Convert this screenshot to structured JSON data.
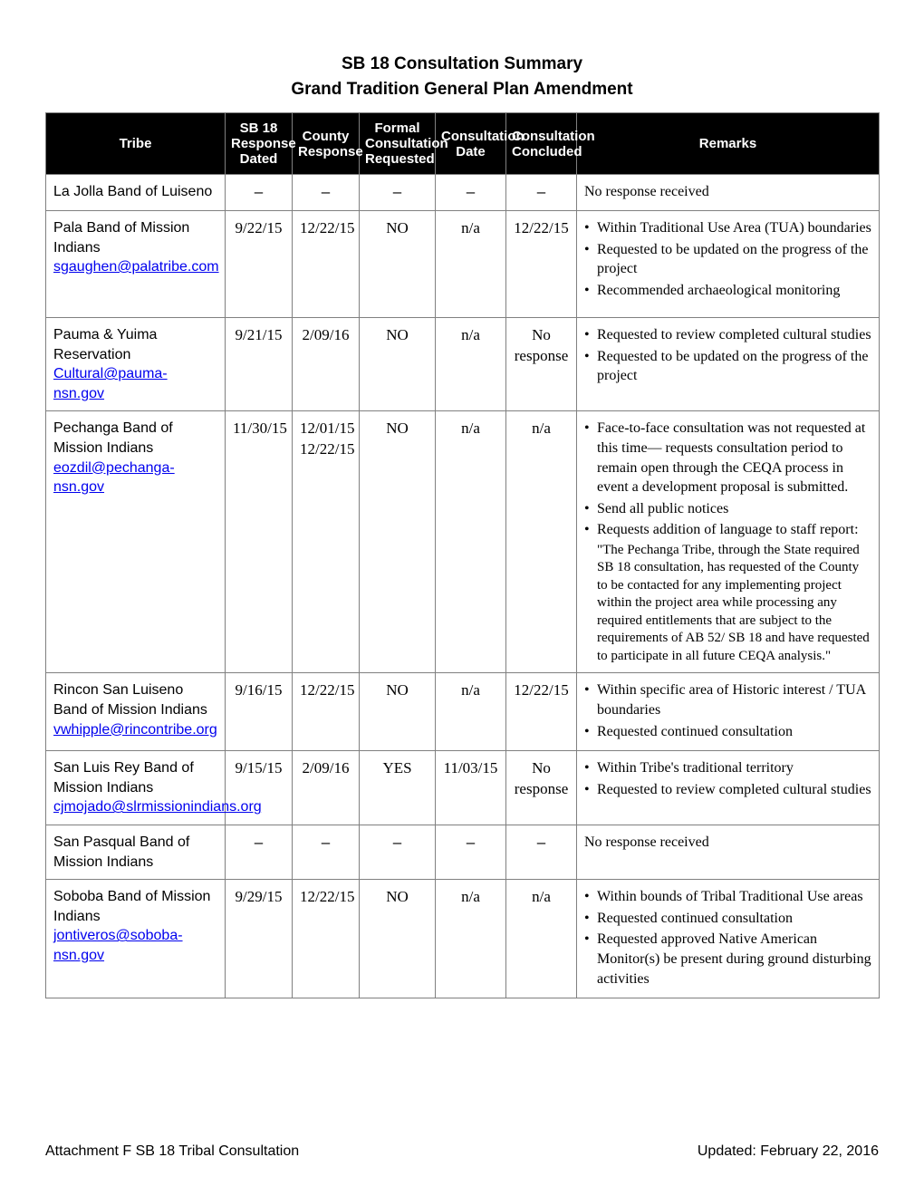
{
  "title1": "SB 18 Consultation Summary",
  "title2": "Grand Tradition General Plan Amendment",
  "columns": [
    "Tribe",
    "SB 18 Response Dated",
    "County Response",
    "Formal Consultation Requested",
    "Consultation Date",
    "Consultation Concluded",
    "Remarks"
  ],
  "rows": [
    {
      "tribe": "La Jolla Band of Luiseno",
      "email": "",
      "sb18": "–",
      "county": "–",
      "formal": "–",
      "cdate": "–",
      "concluded": "–",
      "remarks_plain": "No response received",
      "remarks_bullets": []
    },
    {
      "tribe": "Pala Band of Mission Indians",
      "email": "sgaughen@palatribe.com",
      "sb18": "9/22/15",
      "county": "12/22/15",
      "formal": "NO",
      "cdate": "n/a",
      "concluded": "12/22/15",
      "remarks_plain": "",
      "remarks_bullets": [
        "Within Traditional Use Area (TUA) boundaries",
        "Requested to be updated on the progress of the project",
        "Recommended archaeological monitoring"
      ]
    },
    {
      "tribe": "Pauma & Yuima Reservation",
      "email": "Cultural@pauma-nsn.gov",
      "sb18": "9/21/15",
      "county": "2/09/16",
      "formal": "NO",
      "cdate": "n/a",
      "concluded": "No response",
      "remarks_plain": "",
      "remarks_bullets": [
        "Requested to review completed cultural studies",
        "Requested to be updated on the progress of the project"
      ]
    },
    {
      "tribe": "Pechanga Band of Mission Indians",
      "email": "eozdil@pechanga-nsn.gov",
      "sb18": "11/30/15",
      "county": "12/01/15\n12/22/15",
      "formal": "NO",
      "cdate": "n/a",
      "concluded": "n/a",
      "remarks_plain": "",
      "remarks_bullets": [
        "Face-to-face consultation was not requested at this time— requests consultation period to remain open through the CEQA process in event a development proposal is submitted.",
        "Send all public notices",
        "Requests addition of language to staff report:"
      ],
      "quote": "\"The Pechanga Tribe, through the State required SB 18 consultation, has requested of the County to be contacted for any implementing project within the project area while processing any required entitlements that are subject to the requirements of AB 52/ SB 18 and have requested to participate in all future CEQA analysis.\""
    },
    {
      "tribe": "Rincon San Luiseno Band of Mission Indians",
      "email": "vwhipple@rincontribe.org",
      "sb18": "9/16/15",
      "county": "12/22/15",
      "formal": "NO",
      "cdate": "n/a",
      "concluded": "12/22/15",
      "remarks_plain": "",
      "remarks_bullets": [
        "Within specific area of Historic interest / TUA boundaries",
        "Requested continued consultation"
      ]
    },
    {
      "tribe": "San Luis Rey Band of Mission Indians",
      "email": "cjmojado@slrmissionindians.org",
      "sb18": "9/15/15",
      "county": "2/09/16",
      "formal": "YES",
      "cdate": "11/03/15",
      "concluded": "No response",
      "remarks_plain": "",
      "remarks_bullets": [
        "Within Tribe's traditional territory",
        "Requested to review completed cultural studies"
      ]
    },
    {
      "tribe": "San Pasqual Band of Mission Indians",
      "email": "",
      "sb18": "–",
      "county": "–",
      "formal": "–",
      "cdate": "–",
      "concluded": "–",
      "remarks_plain": "No response received",
      "remarks_bullets": []
    },
    {
      "tribe": "Soboba Band of Mission Indians",
      "email": "jontiveros@soboba-nsn.gov",
      "sb18": "9/29/15",
      "county": "12/22/15",
      "formal": "NO",
      "cdate": "n/a",
      "concluded": "n/a",
      "remarks_plain": "",
      "remarks_bullets": [
        "Within bounds of Tribal Traditional Use areas",
        "Requested continued consultation",
        "Requested approved Native American Monitor(s) be present during ground disturbing activities"
      ]
    }
  ],
  "footer_left": "Attachment F SB 18 Tribal Consultation",
  "footer_right": "Updated: February 22, 2016",
  "row_heights": [
    "",
    "118px",
    "",
    "",
    "",
    "",
    "",
    ""
  ]
}
